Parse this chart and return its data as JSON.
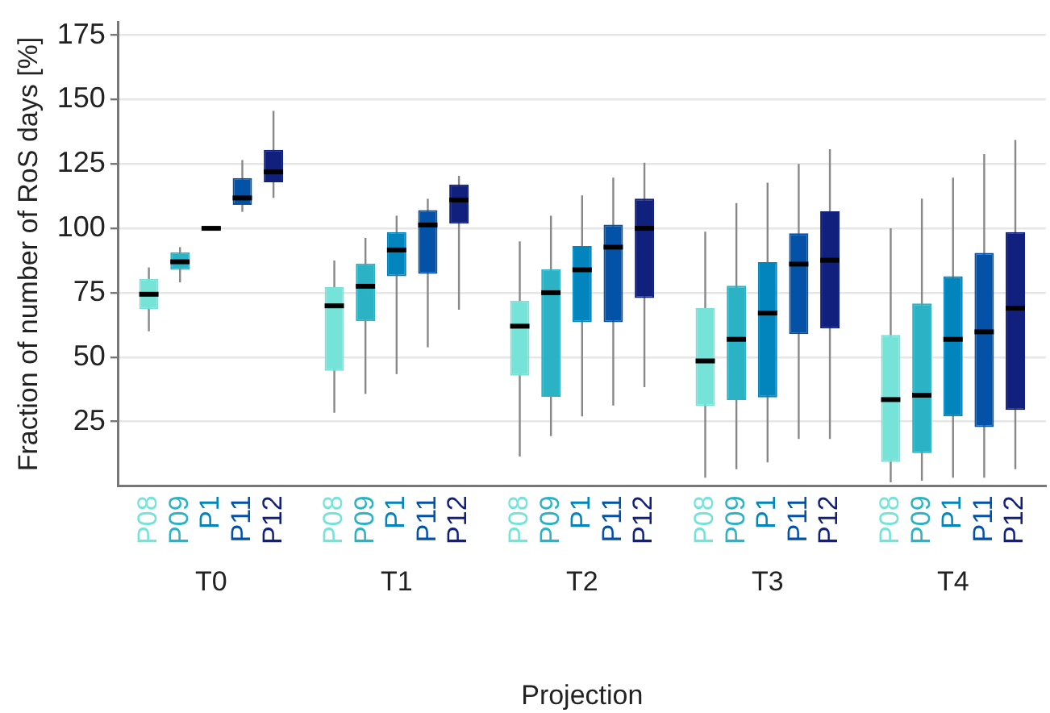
{
  "chart_data": {
    "type": "box",
    "xlabel": "Projection",
    "ylabel": "Fraction of number of RoS days [%]",
    "categories": [
      "T0",
      "T1",
      "T2",
      "T3",
      "T4"
    ],
    "ylim": [
      0,
      180
    ],
    "yticks": [
      25,
      50,
      75,
      100,
      125,
      150,
      175
    ],
    "grid": "y",
    "series": [
      {
        "name": "P08",
        "color": "#76e3d8",
        "boxes": [
          {
            "low": 60,
            "q1": 68.6,
            "median": 74.4,
            "q3": 80.4,
            "high": 84.8
          },
          {
            "low": 28.4,
            "q1": 44.7,
            "median": 69.9,
            "q3": 77.2,
            "high": 87.5
          },
          {
            "low": 11.4,
            "q1": 42.8,
            "median": 62,
            "q3": 71.9,
            "high": 94.9
          },
          {
            "low": 3.2,
            "q1": 31,
            "median": 48.5,
            "q3": 69,
            "high": 98.7
          },
          {
            "low": 1.4,
            "q1": 9.3,
            "median": 33.5,
            "q3": 58.6,
            "high": 100
          }
        ]
      },
      {
        "name": "P09",
        "color": "#2bb3c5",
        "boxes": [
          {
            "low": 79,
            "q1": 83.9,
            "median": 87,
            "q3": 90.7,
            "high": 92.7
          },
          {
            "low": 35.7,
            "q1": 63.9,
            "median": 77.5,
            "q3": 86.3,
            "high": 96.3
          },
          {
            "low": 19.3,
            "q1": 34.6,
            "median": 75,
            "q3": 84.1,
            "high": 104.9
          },
          {
            "low": 6.5,
            "q1": 33.3,
            "median": 56.9,
            "q3": 77.7,
            "high": 109.8
          },
          {
            "low": 2,
            "q1": 12.7,
            "median": 35.2,
            "q3": 70.8,
            "high": 111.5
          }
        ]
      },
      {
        "name": "P1",
        "color": "#0285bd",
        "boxes": [
          {
            "low": 99.5,
            "q1": 99.5,
            "median": 100,
            "q3": 100.5,
            "high": 100.5
          },
          {
            "low": 43.4,
            "q1": 81.4,
            "median": 91.6,
            "q3": 98.5,
            "high": 104.9
          },
          {
            "low": 27,
            "q1": 63.5,
            "median": 83.9,
            "q3": 93.1,
            "high": 112.8
          },
          {
            "low": 9.1,
            "q1": 34.3,
            "median": 67.1,
            "q3": 86.9,
            "high": 117.7
          },
          {
            "low": 3.2,
            "q1": 27,
            "median": 56.9,
            "q3": 81.4,
            "high": 119.7
          }
        ]
      },
      {
        "name": "P11",
        "color": "#0352a8",
        "boxes": [
          {
            "low": 106.4,
            "q1": 109.1,
            "median": 111.8,
            "q3": 119.5,
            "high": 126.5
          },
          {
            "low": 53.8,
            "q1": 82.3,
            "median": 101.3,
            "q3": 107.1,
            "high": 111.5
          },
          {
            "low": 31.2,
            "q1": 63.5,
            "median": 92.7,
            "q3": 101.4,
            "high": 119.7
          },
          {
            "low": 18.2,
            "q1": 58.9,
            "median": 86.1,
            "q3": 98.1,
            "high": 125
          },
          {
            "low": 3.2,
            "q1": 22.8,
            "median": 59.8,
            "q3": 90.5,
            "high": 128.8
          }
        ]
      },
      {
        "name": "P12",
        "color": "#111f7d",
        "boxes": [
          {
            "low": 111.8,
            "q1": 117.9,
            "median": 121.9,
            "q3": 130.5,
            "high": 145.6
          },
          {
            "low": 68.4,
            "q1": 101.8,
            "median": 111,
            "q3": 117,
            "high": 120.4
          },
          {
            "low": 38.3,
            "q1": 72.9,
            "median": 100,
            "q3": 111.5,
            "high": 125.5
          },
          {
            "low": 18.2,
            "q1": 61.1,
            "median": 87.6,
            "q3": 106.6,
            "high": 130.7
          },
          {
            "low": 6.5,
            "q1": 29.5,
            "median": 69,
            "q3": 98.5,
            "high": 134.3
          }
        ]
      }
    ]
  }
}
